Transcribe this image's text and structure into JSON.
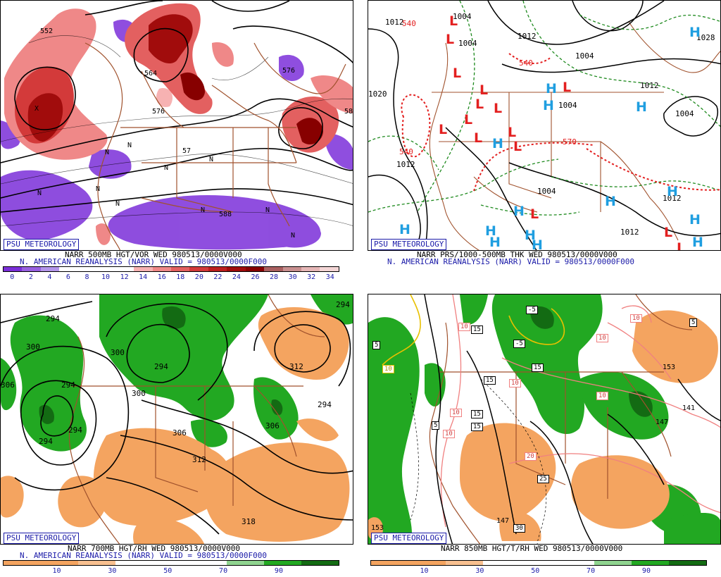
{
  "panels": {
    "tl": {
      "badge": "PSU METEOROLOGY",
      "caption_line1": "NARR 500MB HGT/VOR WED 980513/0000V000",
      "caption_line2": "N. AMERICAN REANALYSIS (NARR) VALID = 980513/0000F000",
      "colorbar_ticks": [
        "0",
        "2",
        "4",
        "6",
        "8",
        "10",
        "12",
        "14",
        "16",
        "18",
        "20",
        "22",
        "24",
        "26",
        "28",
        "30",
        "32",
        "34"
      ],
      "colorbar_colors": [
        "#7b2fd9",
        "#9860e0",
        "#b496ea",
        "#ffffff",
        "#ffffff",
        "#ffffff",
        "#ffffff",
        "#f7b2b2",
        "#ef8888",
        "#e36060",
        "#d33a3a",
        "#bd1f1f",
        "#a10c0c",
        "#870000",
        "#aa6060",
        "#c99090",
        "#e6b7b7",
        "#f4d6d6"
      ],
      "contour_labels": [
        "552",
        "552",
        "564",
        "576",
        "576",
        "576",
        "588",
        "57",
        "58",
        "N",
        "N",
        "N",
        "N",
        "N",
        "N",
        "N",
        "N",
        "N",
        "N",
        "X"
      ]
    },
    "tr": {
      "badge": "PSU METEOROLOGY",
      "caption_line1": "NARR PRS/1000-500MB THK WED 980513/0000V000",
      "caption_line2": "N. AMERICAN REANALYSIS (NARR) VALID = 980513/0000F000",
      "isobar_labels": [
        "1012",
        "1004",
        "1012",
        "1004",
        "1004",
        "1020",
        "1012",
        "1004",
        "1004",
        "1012",
        "1028",
        "1004",
        "1012",
        "1012"
      ],
      "thickness_labels": [
        "540",
        "540",
        "570",
        "540"
      ],
      "lows": [
        "L",
        "L",
        "L",
        "L",
        "L",
        "L",
        "L",
        "L",
        "L",
        "L",
        "L",
        "L",
        "L",
        "L",
        "L"
      ],
      "highs": [
        "H",
        "H",
        "H",
        "H",
        "H",
        "H",
        "H",
        "H",
        "H",
        "H",
        "H",
        "H",
        "H",
        "H",
        "H"
      ],
      "colors": {
        "low": "#e32020",
        "high": "#1f9ee0",
        "isobar": "#000000",
        "thickness": "#1e8a1e"
      }
    },
    "bl": {
      "badge": "PSU METEOROLOGY",
      "caption_line1": "NARR 700MB HGT/RH WED 980513/0000V000",
      "caption_line2": "N. AMERICAN REANALYSIS (NARR) VALID = 980513/0000F000",
      "colorbar_ticks": [
        "10",
        "30",
        "50",
        "70",
        "90"
      ],
      "contour_labels": [
        "294",
        "300",
        "300",
        "294",
        "306",
        "306",
        "312",
        "312",
        "300",
        "306",
        "318",
        "294",
        "294",
        "294",
        "294",
        "294",
        "306"
      ]
    },
    "br": {
      "badge": "PSU METEOROLOGY",
      "caption_line1": "NARR 850MB HGT/T/RH WED 980513/0000V000",
      "colorbar_ticks": [
        "10",
        "30",
        "50",
        "70",
        "90"
      ],
      "temp_boxes": [
        "5",
        "-5",
        "-5",
        "5",
        "10",
        "15",
        "15",
        "15",
        "10",
        "5",
        "15",
        "15",
        "10",
        "10",
        "20",
        "25",
        "30",
        "10",
        "10",
        "10",
        "5",
        "10"
      ],
      "height_labels": [
        "153",
        "147",
        "141",
        "153",
        "147",
        "153"
      ]
    }
  },
  "colors": {
    "rh_dry": "#f4a460",
    "rh_moist": "#22a822",
    "rh_moist_dark": "#136b13",
    "border": "#a0522d",
    "vort_pos": "#d12b2b",
    "vort_neg": "#7b2fd9",
    "label_blue": "#1a1aa8"
  }
}
